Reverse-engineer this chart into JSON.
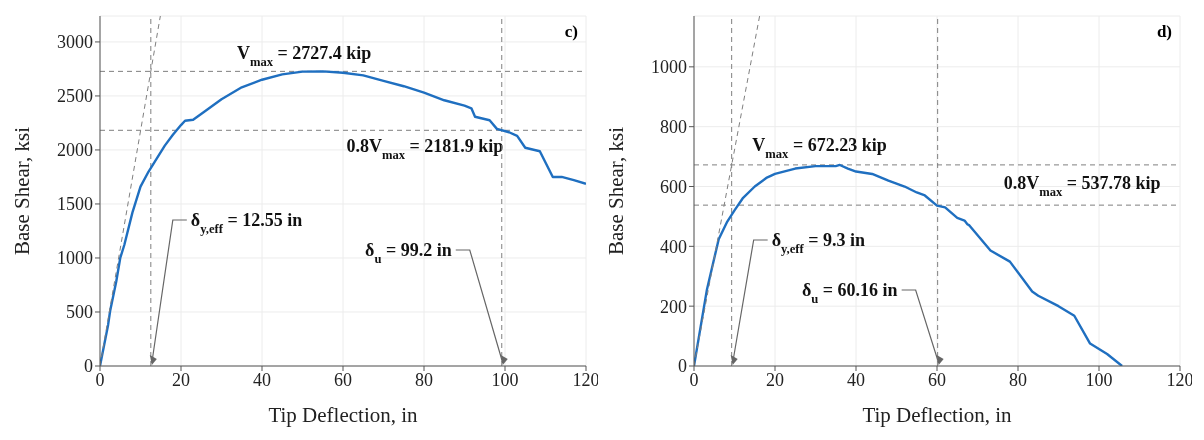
{
  "chart_data": [
    {
      "type": "line",
      "xlabel": "Tip Deflection, in",
      "ylabel": "Base Shear, ksi",
      "xlim": [
        0,
        120
      ],
      "ylim": [
        0,
        3240
      ],
      "xticks": [
        0,
        20,
        40,
        60,
        80,
        100,
        120
      ],
      "yticks": [
        0,
        500,
        1000,
        1500,
        2000,
        2500,
        3000
      ],
      "grid": true,
      "marker": "none",
      "line_style": "solid",
      "annotations": [
        "c)"
      ],
      "series": [
        {
          "color": "#1f6fc0",
          "x": [
            0,
            2,
            2.5,
            4,
            5,
            6,
            8,
            10,
            12,
            14,
            16,
            18,
            20,
            21,
            23,
            26,
            30,
            35,
            40,
            45,
            50,
            55,
            60,
            65,
            70,
            75,
            80,
            85,
            90,
            91.7,
            92.6,
            96.2,
            98,
            101,
            103,
            105,
            108.6,
            111.8,
            114,
            117,
            120
          ],
          "values": [
            0,
            380,
            509,
            780,
            1000,
            1120,
            1420,
            1660,
            1800,
            1920,
            2040,
            2140,
            2230,
            2270,
            2280,
            2360,
            2470,
            2580,
            2650,
            2700,
            2725,
            2727,
            2715,
            2690,
            2640,
            2590,
            2530,
            2460,
            2410,
            2386,
            2307,
            2275,
            2195,
            2164,
            2131,
            2020,
            1988,
            1750,
            1750,
            1720,
            1686
          ]
        },
        {
          "type": "line",
          "color": "#7f7f7f",
          "line_style": "dashed",
          "x": [
            0,
            14.9
          ],
          "values": [
            0,
            3240
          ]
        }
      ],
      "ref_lines": [
        {
          "axis": "y",
          "value": 2727.4,
          "label": "V$_{max}$ = 2727.4 kip",
          "color": "#7f7f7f",
          "line_style": "dashed"
        },
        {
          "axis": "y",
          "value": 2181.9,
          "label": "0.8V$_{max}$ = 2181.9 kip",
          "color": "#7f7f7f",
          "line_style": "dashed"
        },
        {
          "axis": "x",
          "value": 12.55,
          "label": "δ$_{y,eff}$ = 12.55 in",
          "color": "#7f7f7f",
          "line_style": "dashed"
        },
        {
          "axis": "x",
          "value": 99.2,
          "label": "δ$_{u}$ = 99.2 in",
          "color": "#7f7f7f",
          "line_style": "dashed"
        }
      ]
    },
    {
      "type": "line",
      "xlabel": "Tip Deflection, in",
      "ylabel": "Base Shear, ksi",
      "xlim": [
        0,
        120
      ],
      "ylim": [
        0,
        1170
      ],
      "xticks": [
        0,
        20,
        40,
        60,
        80,
        100,
        120
      ],
      "yticks": [
        0,
        200,
        400,
        600,
        800,
        1000
      ],
      "grid": true,
      "marker": "none",
      "line_style": "solid",
      "annotations": [
        "d)"
      ],
      "series": [
        {
          "color": "#1f6fc0",
          "x": [
            0,
            3.2,
            6.1,
            8.1,
            10,
            12,
            15,
            18,
            20,
            25,
            30,
            35,
            36,
            38,
            40,
            44,
            48,
            52,
            55,
            57,
            60,
            62,
            65,
            66.8,
            67.5,
            68,
            73.2,
            78,
            83.5,
            85,
            90,
            93.9,
            97.8,
            102,
            105.7
          ],
          "values": [
            0,
            256,
            424,
            480,
            520,
            560,
            600,
            630,
            642,
            660,
            668,
            668,
            672,
            660,
            650,
            642,
            620,
            600,
            580,
            570,
            536,
            530,
            495,
            486,
            474,
            470,
            386,
            349,
            249,
            235,
            200,
            168,
            75,
            40,
            0
          ]
        },
        {
          "type": "line",
          "color": "#7f7f7f",
          "line_style": "dashed",
          "x": [
            0,
            16.2
          ],
          "values": [
            0,
            1170
          ]
        }
      ],
      "ref_lines": [
        {
          "axis": "y",
          "value": 672.23,
          "label": "V$_{max}$ = 672.23 kip",
          "color": "#7f7f7f",
          "line_style": "dashed"
        },
        {
          "axis": "y",
          "value": 537.78,
          "label": "0.8V$_{max}$ = 537.78 kip",
          "color": "#7f7f7f",
          "line_style": "dashed"
        },
        {
          "axis": "x",
          "value": 9.3,
          "label": "δ$_{y,eff}$ = 9.3 in",
          "color": "#7f7f7f",
          "line_style": "dashed"
        },
        {
          "axis": "x",
          "value": 60.16,
          "label": "δ$_{u}$ = 60.16 in",
          "color": "#7f7f7f",
          "line_style": "dashed"
        }
      ]
    }
  ]
}
